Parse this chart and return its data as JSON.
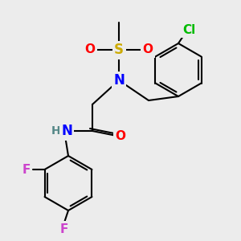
{
  "bg": "#ececec",
  "figsize": [
    3.0,
    3.0
  ],
  "dpi": 100,
  "bond_lw": 1.5,
  "bond_color": "#000000",
  "atom_colors": {
    "S": "#ccaa00",
    "O": "#ff0000",
    "N": "#0000ff",
    "Cl": "#00bb00",
    "F": "#cc44cc",
    "H": "#558888",
    "C": "#000000"
  }
}
